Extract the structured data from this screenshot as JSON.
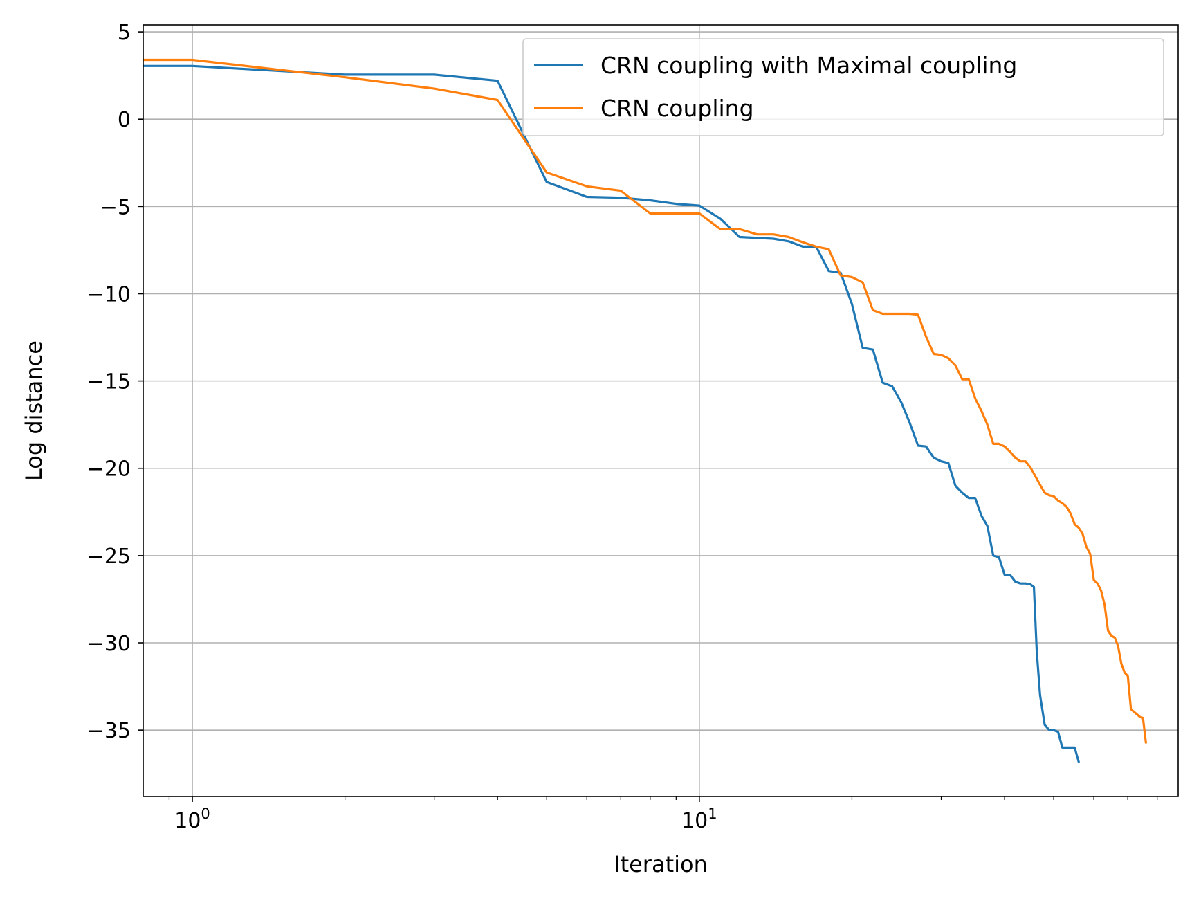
{
  "chart_data": {
    "type": "line",
    "xlabel": "Iteration",
    "ylabel": "Log distance",
    "xscale": "log",
    "xlim": [
      0.8,
      88
    ],
    "ylim": [
      -38.8,
      5.4
    ],
    "grid": true,
    "legend_position": "top-right",
    "x_ticks": [
      {
        "value": 1,
        "base": "10",
        "exp": "0"
      },
      {
        "value": 10,
        "base": "10",
        "exp": "1"
      }
    ],
    "y_ticks": [
      {
        "value": 5,
        "label": "5"
      },
      {
        "value": 0,
        "label": "0"
      },
      {
        "value": -5,
        "label": "−5"
      },
      {
        "value": -10,
        "label": "−10"
      },
      {
        "value": -15,
        "label": "−15"
      },
      {
        "value": -20,
        "label": "−20"
      },
      {
        "value": -25,
        "label": "−25"
      },
      {
        "value": -30,
        "label": "−30"
      },
      {
        "value": -35,
        "label": "−35"
      }
    ],
    "series": [
      {
        "name": "CRN coupling with Maximal coupling",
        "color": "#1f77b4",
        "points": [
          [
            0.8,
            3.05
          ],
          [
            1,
            3.05
          ],
          [
            2,
            2.55
          ],
          [
            3,
            2.55
          ],
          [
            4,
            2.2
          ],
          [
            5,
            -3.6
          ],
          [
            6,
            -4.45
          ],
          [
            7,
            -4.5
          ],
          [
            8,
            -4.65
          ],
          [
            9,
            -4.85
          ],
          [
            10,
            -4.95
          ],
          [
            11,
            -5.7
          ],
          [
            12,
            -6.75
          ],
          [
            14,
            -6.85
          ],
          [
            15,
            -7.0
          ],
          [
            16,
            -7.3
          ],
          [
            17,
            -7.3
          ],
          [
            18,
            -8.7
          ],
          [
            19,
            -8.8
          ],
          [
            20,
            -10.6
          ],
          [
            21,
            -13.1
          ],
          [
            22,
            -13.2
          ],
          [
            23,
            -15.1
          ],
          [
            24,
            -15.3
          ],
          [
            25,
            -16.2
          ],
          [
            26,
            -17.4
          ],
          [
            27,
            -18.7
          ],
          [
            28,
            -18.75
          ],
          [
            29,
            -19.4
          ],
          [
            30,
            -19.6
          ],
          [
            31,
            -19.7
          ],
          [
            32,
            -21.0
          ],
          [
            33,
            -21.4
          ],
          [
            34,
            -21.7
          ],
          [
            35,
            -21.7
          ],
          [
            36,
            -22.7
          ],
          [
            37,
            -23.3
          ],
          [
            38,
            -25.0
          ],
          [
            39,
            -25.1
          ],
          [
            40,
            -26.1
          ],
          [
            41,
            -26.1
          ],
          [
            42,
            -26.5
          ],
          [
            43,
            -26.6
          ],
          [
            44,
            -26.6
          ],
          [
            45,
            -26.65
          ],
          [
            45.7,
            -26.8
          ],
          [
            46.3,
            -30.5
          ],
          [
            47,
            -33.0
          ],
          [
            48,
            -34.7
          ],
          [
            49,
            -35.0
          ],
          [
            50,
            -35.0
          ],
          [
            51,
            -35.1
          ],
          [
            52,
            -36.0
          ],
          [
            53,
            -36.0
          ],
          [
            54,
            -36.0
          ],
          [
            55,
            -36.0
          ],
          [
            56,
            -36.8
          ]
        ]
      },
      {
        "name": "CRN coupling",
        "color": "#ff7f0e",
        "points": [
          [
            0.8,
            3.4
          ],
          [
            1,
            3.4
          ],
          [
            2,
            2.4
          ],
          [
            3,
            1.75
          ],
          [
            4,
            1.1
          ],
          [
            5,
            -3.05
          ],
          [
            6,
            -3.85
          ],
          [
            7,
            -4.1
          ],
          [
            8,
            -5.4
          ],
          [
            9,
            -5.4
          ],
          [
            10,
            -5.4
          ],
          [
            11,
            -6.3
          ],
          [
            12,
            -6.3
          ],
          [
            13,
            -6.6
          ],
          [
            14,
            -6.6
          ],
          [
            15,
            -6.75
          ],
          [
            16,
            -7.05
          ],
          [
            17,
            -7.3
          ],
          [
            18,
            -7.45
          ],
          [
            19,
            -8.95
          ],
          [
            20,
            -9.05
          ],
          [
            21,
            -9.35
          ],
          [
            22,
            -10.95
          ],
          [
            23,
            -11.15
          ],
          [
            24,
            -11.15
          ],
          [
            25,
            -11.15
          ],
          [
            26,
            -11.15
          ],
          [
            27,
            -11.2
          ],
          [
            28,
            -12.45
          ],
          [
            29,
            -13.45
          ],
          [
            30,
            -13.5
          ],
          [
            31,
            -13.7
          ],
          [
            32,
            -14.1
          ],
          [
            33,
            -14.9
          ],
          [
            34,
            -14.9
          ],
          [
            35,
            -16.0
          ],
          [
            36,
            -16.7
          ],
          [
            37,
            -17.5
          ],
          [
            38,
            -18.6
          ],
          [
            39,
            -18.6
          ],
          [
            40,
            -18.75
          ],
          [
            41,
            -19.05
          ],
          [
            42,
            -19.4
          ],
          [
            43,
            -19.6
          ],
          [
            44,
            -19.6
          ],
          [
            45,
            -19.95
          ],
          [
            46,
            -20.45
          ],
          [
            47,
            -20.95
          ],
          [
            48,
            -21.4
          ],
          [
            49,
            -21.55
          ],
          [
            50,
            -21.6
          ],
          [
            51,
            -21.85
          ],
          [
            52,
            -22.0
          ],
          [
            53,
            -22.2
          ],
          [
            54,
            -22.6
          ],
          [
            55,
            -23.2
          ],
          [
            56,
            -23.4
          ],
          [
            57,
            -23.75
          ],
          [
            58,
            -24.5
          ],
          [
            59,
            -24.9
          ],
          [
            60,
            -26.4
          ],
          [
            61,
            -26.6
          ],
          [
            62,
            -27.0
          ],
          [
            63,
            -27.8
          ],
          [
            64,
            -29.3
          ],
          [
            65,
            -29.6
          ],
          [
            66,
            -29.7
          ],
          [
            67,
            -30.2
          ],
          [
            68,
            -31.2
          ],
          [
            69,
            -31.7
          ],
          [
            70,
            -31.9
          ],
          [
            71,
            -33.8
          ],
          [
            72,
            -33.95
          ],
          [
            73,
            -34.1
          ],
          [
            74,
            -34.25
          ],
          [
            75,
            -34.3
          ],
          [
            76,
            -35.7
          ]
        ]
      }
    ]
  }
}
